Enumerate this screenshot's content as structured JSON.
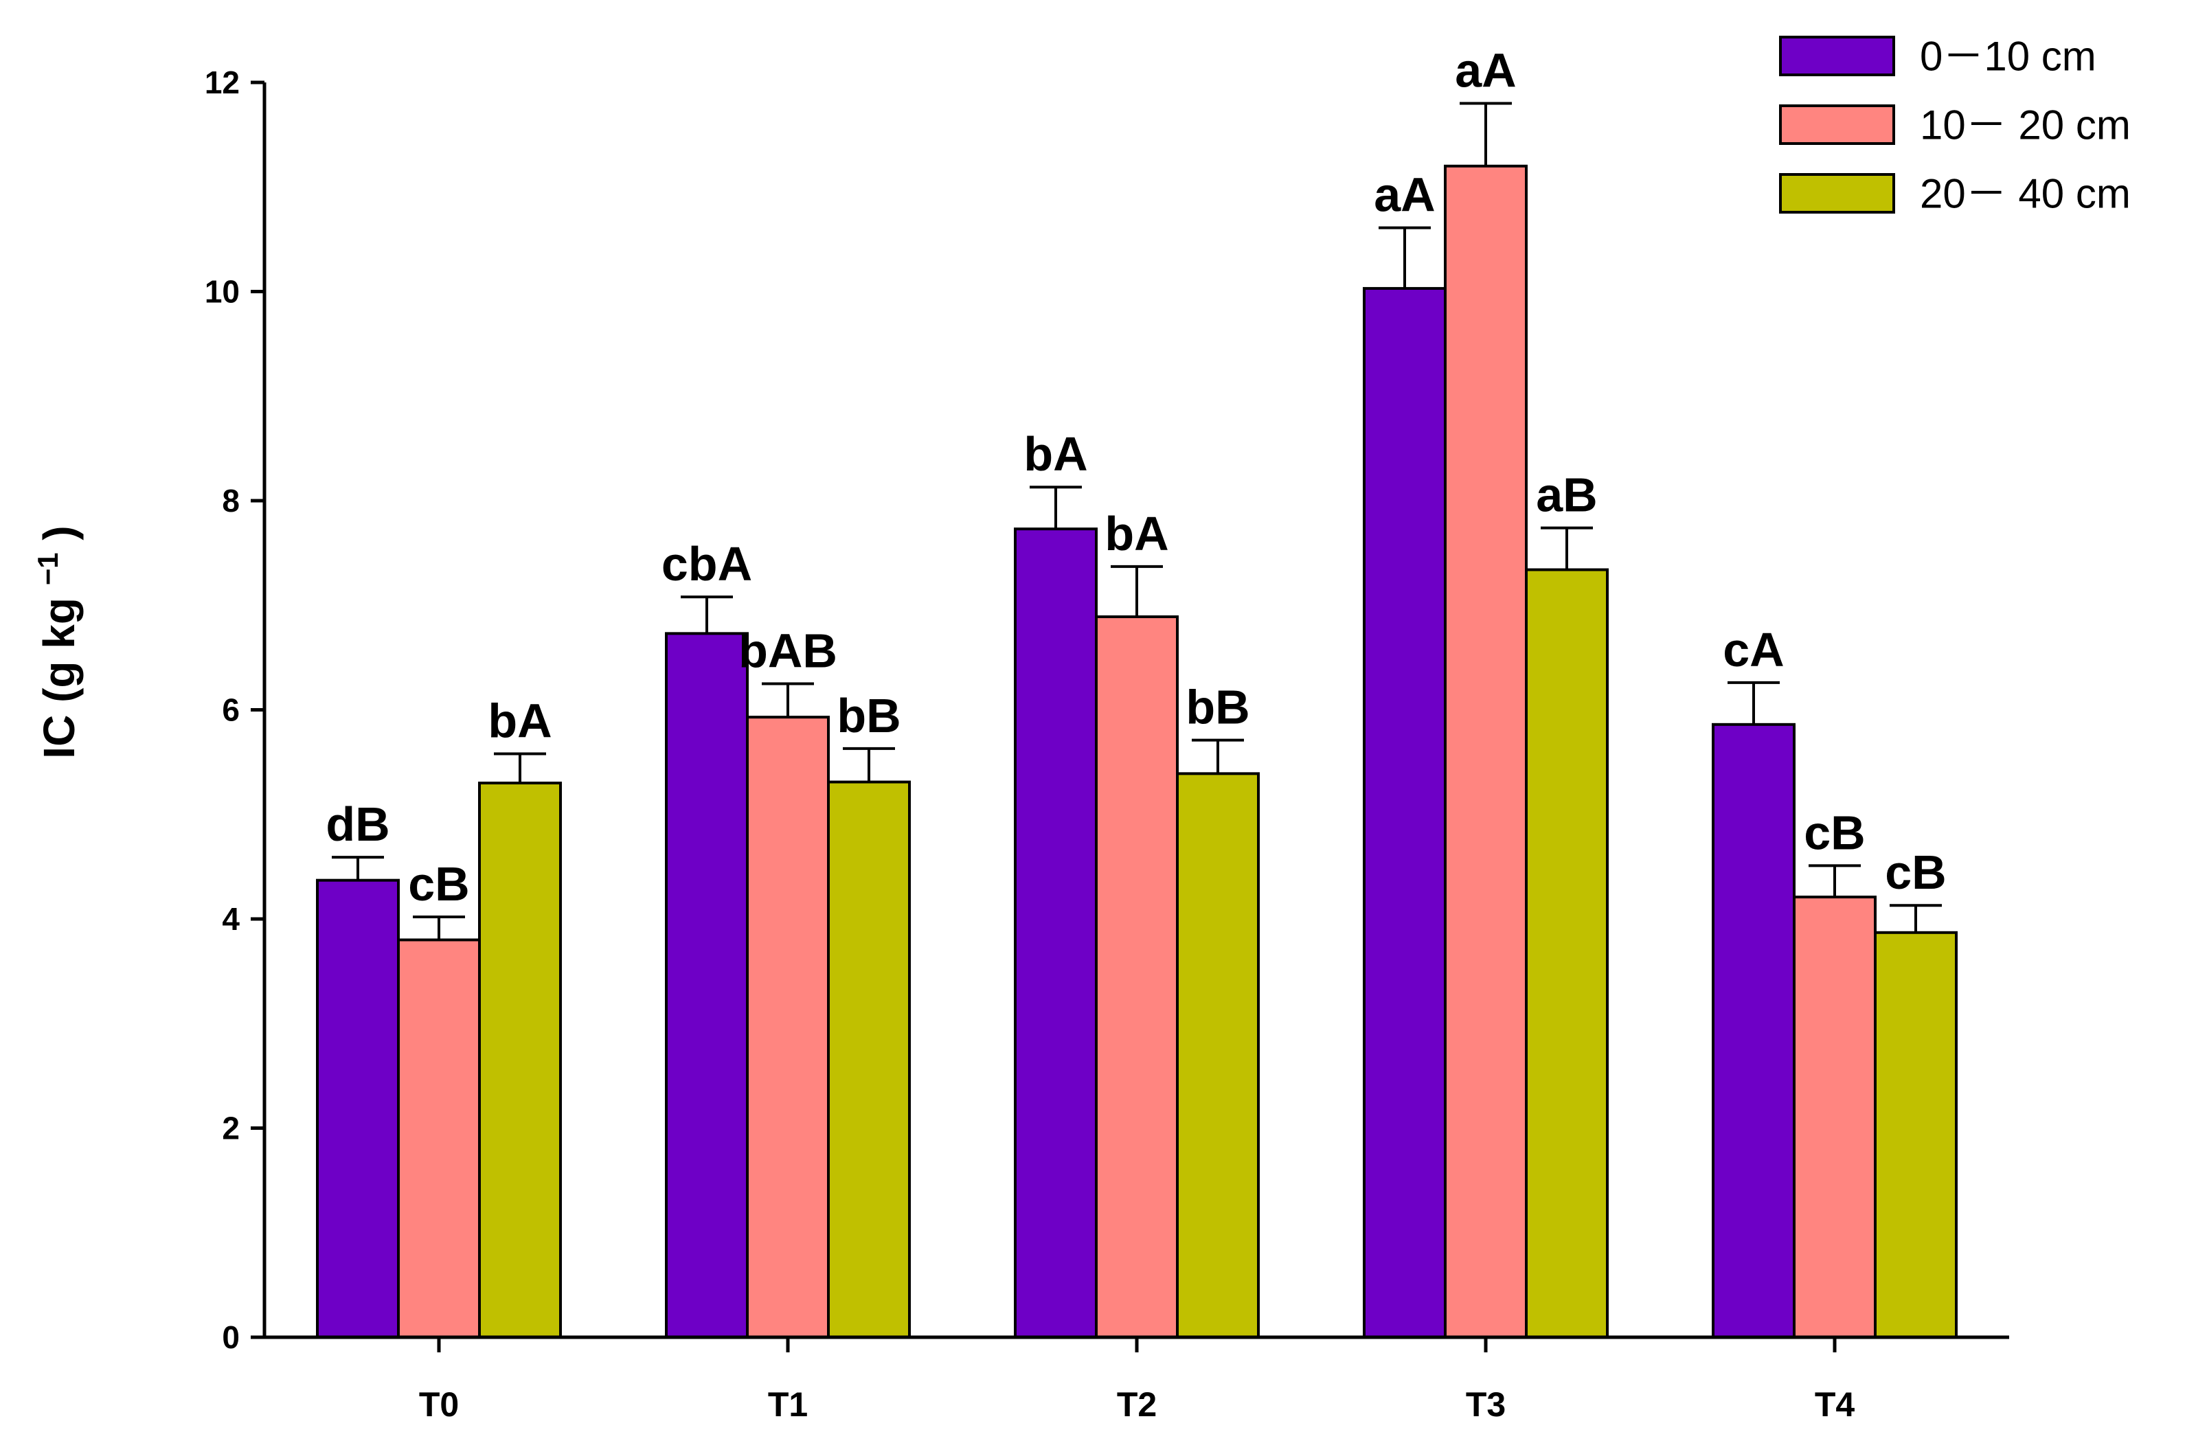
{
  "chart_data": {
    "type": "bar",
    "title": "",
    "xlabel": "",
    "ylabel": "IC (g kg",
    "ylabel_superscript": "−1",
    "ylabel_close": ")",
    "ylim": [
      0,
      12
    ],
    "yticks": [
      0,
      2,
      4,
      6,
      8,
      10,
      12
    ],
    "ytick_labels": [
      "0",
      "2",
      "4",
      "6",
      "8",
      "10",
      "12"
    ],
    "categories": [
      "T0",
      "T1",
      "T2",
      "T3",
      "T4"
    ],
    "legend_position": "top-right",
    "series": [
      {
        "name": "0－10 cm",
        "color": "#6E00C6",
        "values": [
          4.37,
          6.73,
          7.73,
          10.03,
          5.86
        ],
        "errors": [
          0.22,
          0.35,
          0.4,
          0.58,
          0.4
        ],
        "labels": [
          "dB",
          "cbA",
          "bA",
          "aA",
          "cA"
        ]
      },
      {
        "name": "10－ 20 cm",
        "color": "#FF8580",
        "values": [
          3.8,
          5.93,
          6.89,
          11.2,
          4.21
        ],
        "errors": [
          0.22,
          0.32,
          0.48,
          0.6,
          0.3
        ],
        "labels": [
          "cB",
          "bAB",
          "bA",
          "aA",
          "cB"
        ]
      },
      {
        "name": "20－ 40 cm",
        "color": "#C0C000",
        "values": [
          5.3,
          5.31,
          5.39,
          7.34,
          3.87
        ],
        "errors": [
          0.28,
          0.32,
          0.32,
          0.4,
          0.26
        ],
        "labels": [
          "bA",
          "bB",
          "bB",
          "aB",
          "cB"
        ]
      }
    ]
  }
}
